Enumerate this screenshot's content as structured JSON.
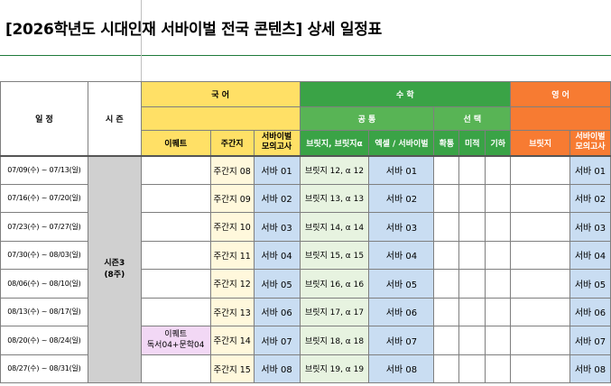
{
  "title": "[2026학년도 시대인재 서바이벌 전국 콘텐츠] 상세 일정표",
  "headers": {
    "schedule": "일 정",
    "season": "시 즌",
    "korean": "국 어",
    "math": "수 학",
    "english": "영 어",
    "common": "공 통",
    "elective": "선 택",
    "kor_cols": [
      "이퀘트",
      "주간지",
      "서바이벌\n모의고사"
    ],
    "math_cols": [
      "브릿지, 브릿지α",
      "엑셀 / 서바이벌",
      "확통",
      "미적",
      "기하"
    ],
    "eng_cols": [
      "브릿지",
      "서바이벌\n모의고사"
    ]
  },
  "season": {
    "name": "시즌3",
    "weeks": "(8주)"
  },
  "rows": [
    {
      "date": "07/09(수) ~  07/13(일)",
      "ekwt": "",
      "weekly": "주간지 08",
      "survival": "서바 01",
      "bridge": "브릿지 12, α 12",
      "excel": "서바 01",
      "eng_survival": "서바 01"
    },
    {
      "date": "07/16(수) ~  07/20(일)",
      "ekwt": "",
      "weekly": "주간지 09",
      "survival": "서바 02",
      "bridge": "브릿지 13, α 13",
      "excel": "서바 02",
      "eng_survival": "서바 02"
    },
    {
      "date": "07/23(수) ~  07/27(일)",
      "ekwt": "",
      "weekly": "주간지 10",
      "survival": "서바 03",
      "bridge": "브릿지 14, α 14",
      "excel": "서바 03",
      "eng_survival": "서바 03"
    },
    {
      "date": "07/30(수) ~  08/03(일)",
      "ekwt": "",
      "weekly": "주간지 11",
      "survival": "서바 04",
      "bridge": "브릿지 15, α 15",
      "excel": "서바 04",
      "eng_survival": "서바 04"
    },
    {
      "date": "08/06(수) ~  08/10(일)",
      "ekwt": "",
      "weekly": "주간지 12",
      "survival": "서바 05",
      "bridge": "브릿지 16, α 16",
      "excel": "서바 05",
      "eng_survival": "서바 05"
    },
    {
      "date": "08/13(수) ~  08/17(일)",
      "ekwt": "",
      "weekly": "주간지 13",
      "survival": "서바 06",
      "bridge": "브릿지 17, α 17",
      "excel": "서바 06",
      "eng_survival": "서바 06"
    },
    {
      "date": "08/20(수) ~  08/24(일)",
      "ekwt": "이퀘트",
      "ekwt2": "독서04+문학04",
      "weekly": "주간지 14",
      "survival": "서바 07",
      "bridge": "브릿지 18, α 18",
      "excel": "서바 07",
      "eng_survival": "서바 07"
    },
    {
      "date": "08/27(수) ~  08/31(일)",
      "ekwt": "",
      "weekly": "주간지 15",
      "survival": "서바 08",
      "bridge": "브릿지 19, α 19",
      "excel": "서바 08",
      "eng_survival": "서바 08"
    }
  ]
}
